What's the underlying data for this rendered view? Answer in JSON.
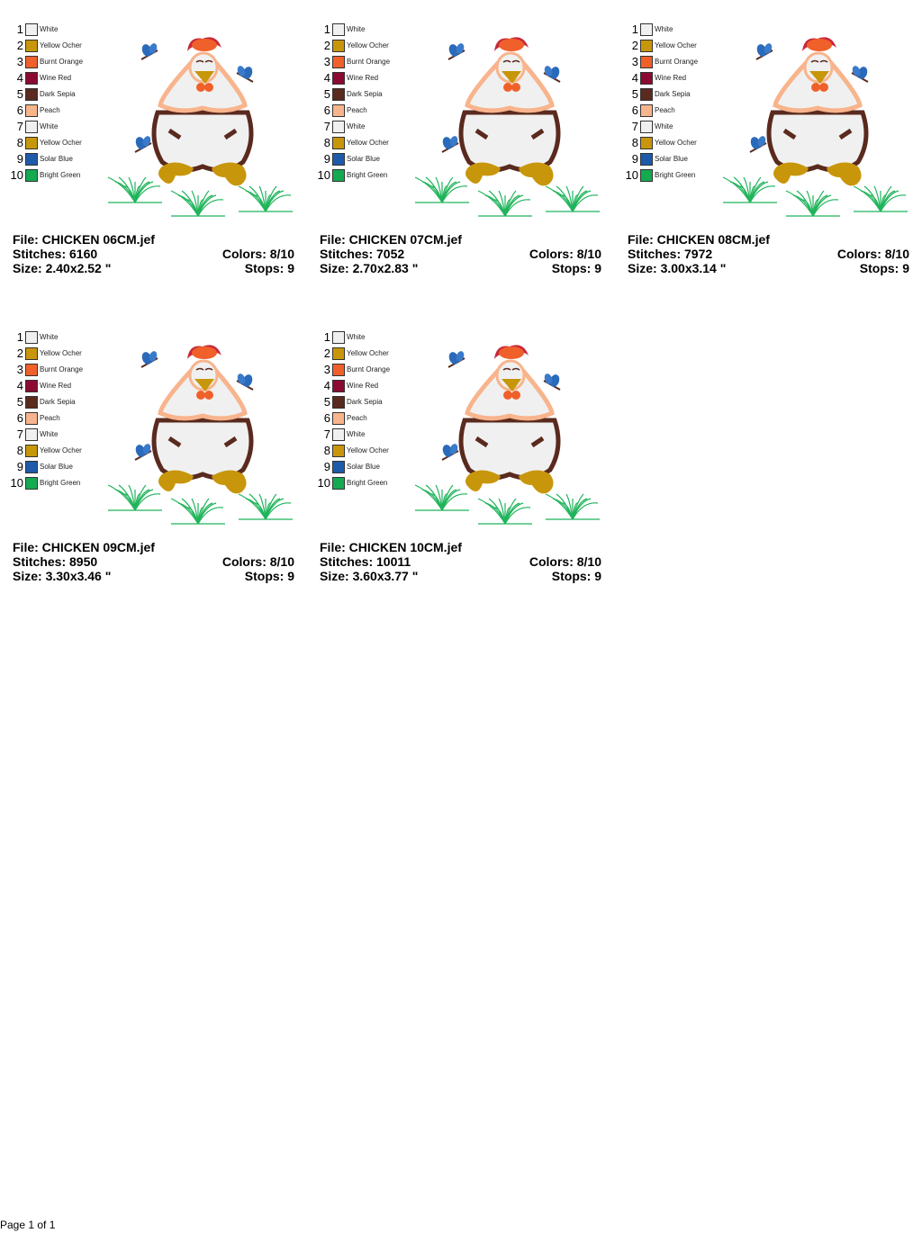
{
  "palette": [
    {
      "n": "1",
      "name": "White",
      "color": "#F0F0F0"
    },
    {
      "n": "2",
      "name": "Yellow Ocher",
      "color": "#C8960A"
    },
    {
      "n": "3",
      "name": "Burnt Orange",
      "color": "#F0602A"
    },
    {
      "n": "4",
      "name": "Wine Red",
      "color": "#8C0A32"
    },
    {
      "n": "5",
      "name": "Dark Sepia",
      "color": "#5A2A1E"
    },
    {
      "n": "6",
      "name": "Peach",
      "color": "#F8B48C"
    },
    {
      "n": "7",
      "name": "White",
      "color": "#F0F0F0"
    },
    {
      "n": "8",
      "name": "Yellow Ocher",
      "color": "#C8960A"
    },
    {
      "n": "9",
      "name": "Solar Blue",
      "color": "#1E5AAA"
    },
    {
      "n": "10",
      "name": "Bright Green",
      "color": "#14AA50"
    }
  ],
  "designs": [
    {
      "file": "File: CHICKEN 06CM.jef",
      "stitches": "Stitches: 6160",
      "size": "Size: 2.40x2.52 \"",
      "colors": "Colors: 8/10",
      "stops": "Stops: 9"
    },
    {
      "file": "File: CHICKEN 07CM.jef",
      "stitches": "Stitches: 7052",
      "size": "Size: 2.70x2.83 \"",
      "colors": "Colors: 8/10",
      "stops": "Stops: 9"
    },
    {
      "file": "File: CHICKEN 08CM.jef",
      "stitches": "Stitches: 7972",
      "size": "Size: 3.00x3.14 \"",
      "colors": "Colors: 8/10",
      "stops": "Stops: 9"
    },
    {
      "file": "File: CHICKEN 09CM.jef",
      "stitches": "Stitches: 8950",
      "size": "Size: 3.30x3.46 \"",
      "colors": "Colors: 8/10",
      "stops": "Stops: 9"
    },
    {
      "file": "File: CHICKEN 10CM.jef",
      "stitches": "Stitches: 10011",
      "size": "Size: 3.60x3.77 \"",
      "colors": "Colors: 8/10",
      "stops": "Stops: 9"
    }
  ],
  "footer": {
    "page": "Page 1 of 1"
  }
}
